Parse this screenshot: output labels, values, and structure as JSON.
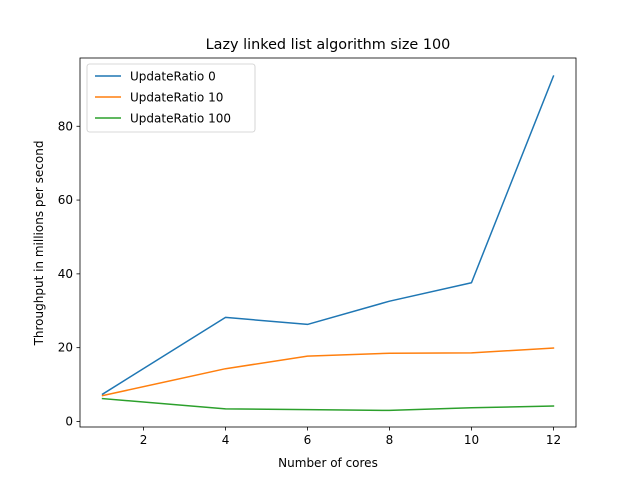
{
  "chart_data": {
    "type": "line",
    "title": "Lazy linked list algorithm size 100",
    "xlabel": "Number of cores",
    "ylabel": "Throughput in millions per second",
    "xlim": [
      0.45,
      12.55
    ],
    "ylim": [
      -1.5,
      98.5
    ],
    "xticks": [
      2,
      4,
      6,
      8,
      10,
      12
    ],
    "yticks": [
      0,
      20,
      40,
      60,
      80
    ],
    "grid": false,
    "legend_position": "top-left",
    "x": [
      1,
      4,
      6,
      8,
      10,
      12
    ],
    "series": [
      {
        "name": "UpdateRatio 0",
        "color": "#1f77b4",
        "values": [
          7.4,
          28.2,
          26.3,
          32.6,
          37.6,
          93.6
        ]
      },
      {
        "name": "UpdateRatio 10",
        "color": "#ff7f0e",
        "values": [
          7.0,
          14.3,
          17.7,
          18.5,
          18.6,
          19.9
        ]
      },
      {
        "name": "UpdateRatio 100",
        "color": "#2ca02c",
        "values": [
          6.2,
          3.4,
          3.2,
          3.0,
          3.7,
          4.2
        ]
      }
    ]
  }
}
